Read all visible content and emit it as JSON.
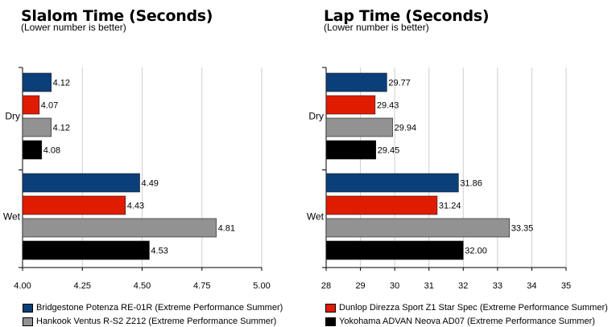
{
  "legend": {
    "items": [
      {
        "label": "Bridgestone Potenza RE-01R (Extreme Performance Summer)",
        "color": "#0b3f79"
      },
      {
        "label": "Dunlop Direzza Sport Z1 Star Spec (Extreme Performance Summer)",
        "color": "#e01c00"
      },
      {
        "label": "Hankook Ventus R-S2 Z212 (Extreme Performance Summer)",
        "color": "#929292"
      },
      {
        "label": "Yokohama ADVAN Neova AD07 (Extreme Performance Summer)",
        "color": "#000000"
      }
    ]
  },
  "chart_data": [
    {
      "type": "bar",
      "orientation": "horizontal",
      "title": "Slalom Time (Seconds)",
      "subtitle": "(Lower number is better)",
      "categories": [
        "Dry",
        "Wet"
      ],
      "xlim": [
        4.0,
        5.0
      ],
      "xticks": [
        "4.00",
        "4.25",
        "4.50",
        "4.75",
        "5.00"
      ],
      "tick_values": [
        4.0,
        4.25,
        4.5,
        4.75,
        5.0
      ],
      "grid": true,
      "series": [
        {
          "name": "Bridgestone Potenza RE-01R (Extreme Performance Summer)",
          "color": "#0b3f79",
          "values": [
            4.12,
            4.49
          ],
          "labels": [
            "4.12",
            "4.49"
          ]
        },
        {
          "name": "Dunlop Direzza Sport Z1 Star Spec (Extreme Performance Summer)",
          "color": "#e01c00",
          "values": [
            4.07,
            4.43
          ],
          "labels": [
            "4.07",
            "4.43"
          ]
        },
        {
          "name": "Hankook Ventus R-S2 Z212 (Extreme Performance Summer)",
          "color": "#929292",
          "values": [
            4.12,
            4.81
          ],
          "labels": [
            "4.12",
            "4.81"
          ]
        },
        {
          "name": "Yokohama ADVAN Neova AD07 (Extreme Performance Summer)",
          "color": "#000000",
          "values": [
            4.08,
            4.53
          ],
          "labels": [
            "4.08",
            "4.53"
          ]
        }
      ]
    },
    {
      "type": "bar",
      "orientation": "horizontal",
      "title": "Lap Time (Seconds)",
      "subtitle": "(Lower number is better)",
      "categories": [
        "Dry",
        "Wet"
      ],
      "xlim": [
        28,
        35
      ],
      "xticks": [
        "28",
        "29",
        "30",
        "31",
        "32",
        "33",
        "34",
        "35"
      ],
      "tick_values": [
        28,
        29,
        30,
        31,
        32,
        33,
        34,
        35
      ],
      "grid": true,
      "series": [
        {
          "name": "Bridgestone Potenza RE-01R (Extreme Performance Summer)",
          "color": "#0b3f79",
          "values": [
            29.77,
            31.86
          ],
          "labels": [
            "29.77",
            "31.86"
          ]
        },
        {
          "name": "Dunlop Direzza Sport Z1 Star Spec (Extreme Performance Summer)",
          "color": "#e01c00",
          "values": [
            29.43,
            31.24
          ],
          "labels": [
            "29.43",
            "31.24"
          ]
        },
        {
          "name": "Hankook Ventus R-S2 Z212 (Extreme Performance Summer)",
          "color": "#929292",
          "values": [
            29.94,
            33.35
          ],
          "labels": [
            "29.94",
            "33.35"
          ]
        },
        {
          "name": "Yokohama ADVAN Neova AD07 (Extreme Performance Summer)",
          "color": "#000000",
          "values": [
            29.45,
            32.0
          ],
          "labels": [
            "29.45",
            "32.00"
          ]
        }
      ]
    }
  ]
}
